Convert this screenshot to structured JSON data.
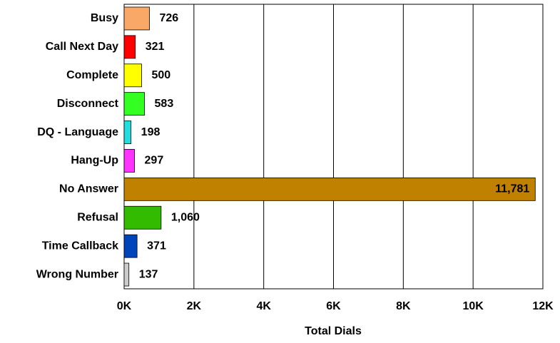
{
  "chart_data": {
    "type": "hbar",
    "categories": [
      "Busy",
      "Call Next Day",
      "Complete",
      "Disconnect",
      "DQ - Language",
      "Hang-Up",
      "No Answer",
      "Refusal",
      "Time Callback",
      "Wrong Number"
    ],
    "values": [
      726,
      321,
      500,
      583,
      198,
      297,
      11781,
      1060,
      371,
      137
    ],
    "value_labels": [
      "726",
      "321",
      "500",
      "583",
      "198",
      "297",
      "11,781",
      "1,060",
      "371",
      "137"
    ],
    "colors": [
      "#f9a868",
      "#ff0000",
      "#ffff00",
      "#33ff22",
      "#22dddd",
      "#ff33ff",
      "#c08000",
      "#33bb00",
      "#0044bb",
      "#cccccc"
    ],
    "xlabel": "Total Dials",
    "xlim": [
      0,
      12000
    ],
    "xticks": [
      {
        "value": 0,
        "label": "0K"
      },
      {
        "value": 2000,
        "label": "2K"
      },
      {
        "value": 4000,
        "label": "4K"
      },
      {
        "value": 6000,
        "label": "6K"
      },
      {
        "value": 8000,
        "label": "8K"
      },
      {
        "value": 10000,
        "label": "10K"
      },
      {
        "value": 12000,
        "label": "12K"
      }
    ],
    "grid": true
  }
}
